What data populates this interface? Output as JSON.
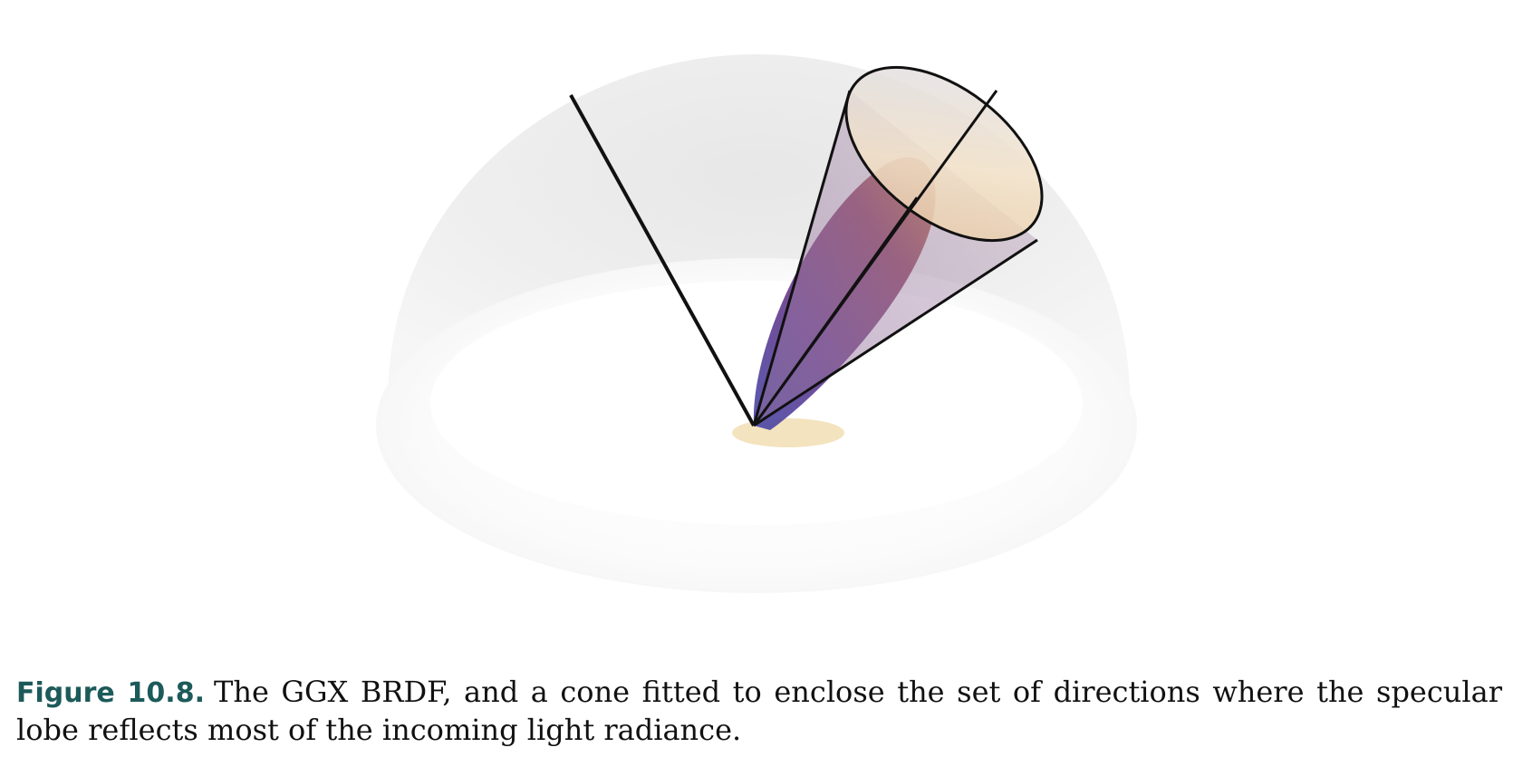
{
  "figure": {
    "description_icon": "hemisphere-brdf-cone-icon"
  },
  "caption": {
    "label": "Figure 10.8.",
    "text": "The GGX BRDF, and a cone fitted to enclose the set of directions where the specular lobe reflects most of the incoming light radiance."
  }
}
